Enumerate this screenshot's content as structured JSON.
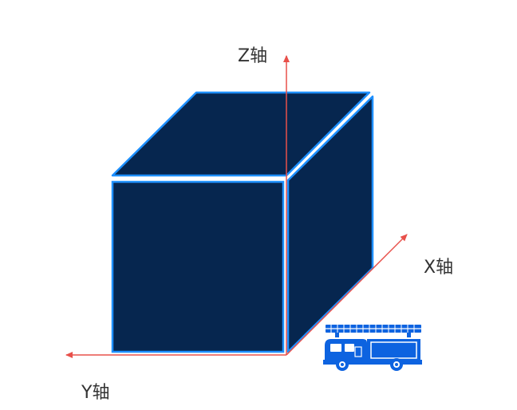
{
  "axes": {
    "z_label": "Z轴",
    "x_label": "X轴",
    "y_label": "Y轴"
  },
  "colors": {
    "cube_fill": "#06264f",
    "cube_stroke": "#1e90ff",
    "axis_arrow": "#e8504a",
    "truck_blue": "#0d63e0",
    "background": "#ffffff"
  },
  "icons": {
    "vehicle": "fire-truck-icon"
  }
}
